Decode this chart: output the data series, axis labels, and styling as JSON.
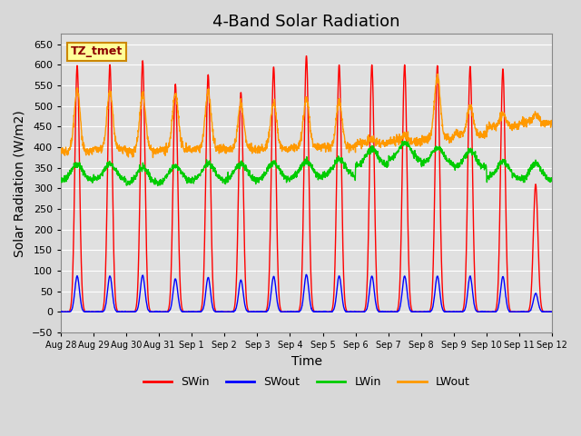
{
  "title": "4-Band Solar Radiation",
  "xlabel": "Time",
  "ylabel": "Solar Radiation (W/m2)",
  "ylim": [
    -50,
    675
  ],
  "yticks": [
    -50,
    0,
    50,
    100,
    150,
    200,
    250,
    300,
    350,
    400,
    450,
    500,
    550,
    600,
    650
  ],
  "background_color": "#d8d8d8",
  "plot_bg_color": "#e0e0e0",
  "grid_color": "#ffffff",
  "title_fontsize": 13,
  "label_fontsize": 10,
  "tick_fontsize": 8,
  "legend_label": "TZ_tmet",
  "legend_box_color": "#ffff99",
  "legend_box_border": "#cc8800",
  "series_colors": {
    "SWin": "#ff0000",
    "SWout": "#0000ff",
    "LWin": "#00cc00",
    "LWout": "#ff9900"
  },
  "n_days": 15,
  "points_per_day": 144,
  "tick_labels": [
    "Aug 28",
    "Aug 29",
    "Aug 30",
    "Aug 31",
    "Sep 1",
    "Sep 2",
    "Sep 3",
    "Sep 4",
    "Sep 5",
    "Sep 6",
    "Sep 7",
    "Sep 8",
    "Sep 9",
    "Sep 10",
    "Sep 11",
    "Sep 12"
  ],
  "SWin_peaks": [
    598,
    600,
    610,
    553,
    576,
    533,
    595,
    622,
    600,
    600,
    600,
    598,
    596,
    590,
    310
  ],
  "LWin_day_vals": [
    318,
    320,
    310,
    315,
    320,
    320,
    322,
    325,
    330,
    355,
    370,
    360,
    350,
    325,
    320
  ],
  "LWout_bases": [
    390,
    395,
    390,
    395,
    395,
    395,
    395,
    400,
    400,
    410,
    415,
    420,
    430,
    450,
    460
  ],
  "LWout_peaks_day": [
    540,
    535,
    530,
    530,
    535,
    505,
    510,
    520,
    510,
    420,
    430,
    570,
    500,
    480,
    480
  ]
}
